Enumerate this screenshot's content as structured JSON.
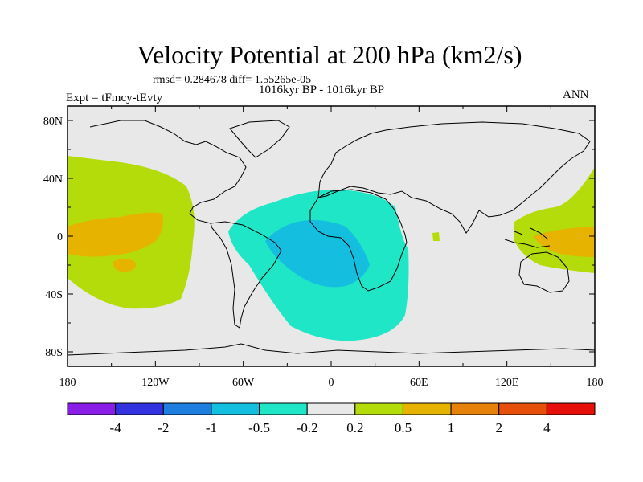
{
  "title": "Velocity Potential at 200 hPa (km2/s)",
  "stats": "rmsd= 0.284678 diff= 1.55265e-05",
  "period": "1016kyr BP - 1016kyr BP",
  "expt": "Expt = tFmcy-tEvty",
  "season": "ANN",
  "map": {
    "projection": "cylindrical-equidistant",
    "lon_range": [
      -180,
      180
    ],
    "lat_range": [
      -90,
      90
    ],
    "background_color": "#e8e8e8",
    "x_tick_labels": [
      {
        "lon": -180,
        "label": "180"
      },
      {
        "lon": -120,
        "label": "120W"
      },
      {
        "lon": -60,
        "label": "60W"
      },
      {
        "lon": 0,
        "label": "0"
      },
      {
        "lon": 60,
        "label": "60E"
      },
      {
        "lon": 120,
        "label": "120E"
      },
      {
        "lon": 180,
        "label": "180"
      }
    ],
    "y_tick_labels": [
      {
        "lat": 80,
        "label": "80N"
      },
      {
        "lat": 40,
        "label": "40N"
      },
      {
        "lat": 0,
        "label": "0"
      },
      {
        "lat": -40,
        "label": "40S"
      },
      {
        "lat": -80,
        "label": "80S"
      }
    ]
  },
  "colorbar": {
    "colors": [
      "#8a1ee6",
      "#3232e0",
      "#1e7ee0",
      "#14bede",
      "#1ee6c6",
      "#e8e8e8",
      "#b4dc0a",
      "#e6b400",
      "#e6820a",
      "#e6500a",
      "#e60f0a"
    ],
    "labels": [
      "-4",
      "-2",
      "-1",
      "-0.5",
      "-0.2",
      "0.2",
      "0.5",
      "1",
      "2",
      "4"
    ]
  },
  "fields": [
    {
      "name": "pacific-positive",
      "level": "0.2 to 0.5",
      "color": "#b4dc0a"
    },
    {
      "name": "pacific-positive-core",
      "level": "0.5 to 1",
      "color": "#e6b400"
    },
    {
      "name": "atlantic-africa-negative",
      "level": "-0.5 to -0.2",
      "color": "#1ee6c6"
    },
    {
      "name": "atlantic-africa-negative-core",
      "level": "-1 to -0.5",
      "color": "#14bede"
    },
    {
      "name": "indian-ocean-positive",
      "level": "0.2 to 0.5",
      "color": "#b4dc0a"
    },
    {
      "name": "maritime-continent-positive",
      "level": "0.2 to 0.5",
      "color": "#b4dc0a"
    },
    {
      "name": "maritime-continent-positive-core",
      "level": "0.5 to 1",
      "color": "#e6b400"
    }
  ]
}
